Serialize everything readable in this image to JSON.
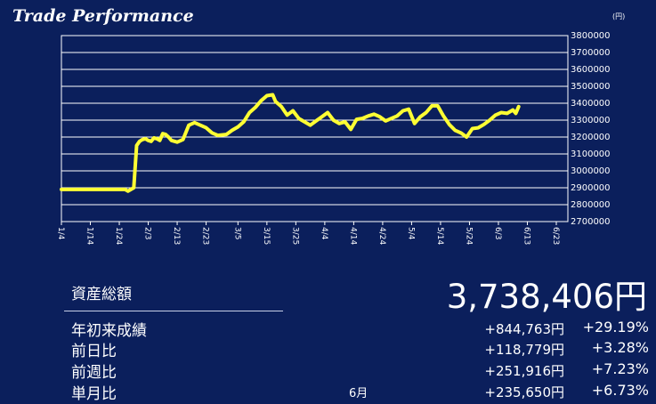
{
  "header": {
    "title": "Trade Performance"
  },
  "chart_data": {
    "type": "line",
    "unit_label": "(円)",
    "ylim": [
      2700000,
      3800000
    ],
    "yticks": [
      3800000,
      3700000,
      3600000,
      3500000,
      3400000,
      3300000,
      3200000,
      3100000,
      3000000,
      2900000,
      2800000,
      2700000
    ],
    "xticks": [
      "1/4",
      "1/14",
      "1/24",
      "2/3",
      "2/13",
      "2/23",
      "3/5",
      "3/15",
      "3/25",
      "4/4",
      "4/14",
      "4/24",
      "5/4",
      "5/14",
      "5/24",
      "6/3",
      "6/13",
      "6/23"
    ],
    "x_start": "1/4",
    "x_end": "6/27",
    "grid": true,
    "line_color": "#ffff33",
    "series": [
      {
        "x": [
          "1/4",
          "1/26",
          "1/27",
          "1/28",
          "1/29",
          "1/30",
          "1/31",
          "2/1",
          "2/2",
          "2/3",
          "2/4",
          "2/5",
          "2/6",
          "2/7",
          "2/8",
          "2/9",
          "2/10",
          "2/11",
          "2/13",
          "2/15",
          "2/17",
          "2/19",
          "2/21",
          "2/23",
          "2/25",
          "2/27",
          "3/1",
          "3/3",
          "3/5",
          "3/7",
          "3/9",
          "3/11",
          "3/13",
          "3/15",
          "3/17",
          "3/18",
          "3/20",
          "3/22",
          "3/24",
          "3/26",
          "3/28",
          "3/30",
          "4/1",
          "4/3",
          "4/5",
          "4/7",
          "4/9",
          "4/11",
          "4/13",
          "4/15",
          "4/17",
          "4/19",
          "4/21",
          "4/23",
          "4/25",
          "4/27",
          "4/29",
          "5/1",
          "5/3",
          "5/5",
          "5/7",
          "5/9",
          "5/11",
          "5/13",
          "5/15",
          "5/17",
          "5/19",
          "5/21",
          "5/23",
          "5/25",
          "5/27",
          "5/29",
          "5/31",
          "6/2",
          "6/4",
          "6/6",
          "6/8",
          "6/9",
          "6/10"
        ],
        "y": [
          2890000,
          2890000,
          2880000,
          2890000,
          2900000,
          3150000,
          3175000,
          3185000,
          3190000,
          3180000,
          3175000,
          3195000,
          3190000,
          3180000,
          3220000,
          3215000,
          3200000,
          3180000,
          3170000,
          3185000,
          3270000,
          3285000,
          3270000,
          3255000,
          3225000,
          3210000,
          3215000,
          3240000,
          3260000,
          3290000,
          3345000,
          3375000,
          3415000,
          3445000,
          3450000,
          3410000,
          3380000,
          3330000,
          3355000,
          3310000,
          3290000,
          3270000,
          3295000,
          3320000,
          3345000,
          3300000,
          3280000,
          3290000,
          3245000,
          3305000,
          3310000,
          3325000,
          3335000,
          3320000,
          3295000,
          3310000,
          3325000,
          3355000,
          3365000,
          3280000,
          3320000,
          3345000,
          3385000,
          3385000,
          3325000,
          3275000,
          3240000,
          3225000,
          3200000,
          3250000,
          3255000,
          3275000,
          3300000,
          3330000,
          3345000,
          3340000,
          3360000,
          3340000,
          3380000
        ]
      }
    ]
  },
  "summary": {
    "total_label": "資産総額",
    "total_value": "3,738,406円",
    "rows": [
      {
        "label": "年初来成績",
        "note": "",
        "amount": "+844,763円",
        "percent": "+29.19%"
      },
      {
        "label": "前日比",
        "note": "",
        "amount": "+118,779円",
        "percent": "+3.28%"
      },
      {
        "label": "前週比",
        "note": "",
        "amount": "+251,916円",
        "percent": "+7.23%"
      },
      {
        "label": "単月比",
        "note": "6月",
        "amount": "+235,650円",
        "percent": "+6.73%"
      }
    ]
  }
}
